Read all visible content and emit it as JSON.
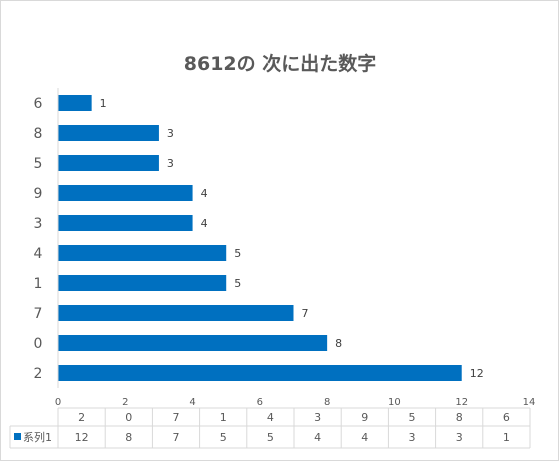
{
  "chart_data": {
    "type": "bar",
    "orientation": "horizontal",
    "title": "8612の 次に出た数字",
    "categories": [
      "2",
      "0",
      "7",
      "1",
      "4",
      "3",
      "9",
      "5",
      "8",
      "6"
    ],
    "series": [
      {
        "name": "系列1",
        "values": [
          12,
          8,
          7,
          5,
          5,
          4,
          4,
          3,
          3,
          1
        ]
      }
    ],
    "xlim": [
      0,
      14
    ],
    "x_ticks": [
      "0",
      "2",
      "4",
      "6",
      "8",
      "10",
      "12",
      "14"
    ],
    "data_labels": true,
    "data_table": true,
    "grid": false,
    "colors": {
      "bar": "#0070C0",
      "legend_key": "#0070C0"
    }
  }
}
